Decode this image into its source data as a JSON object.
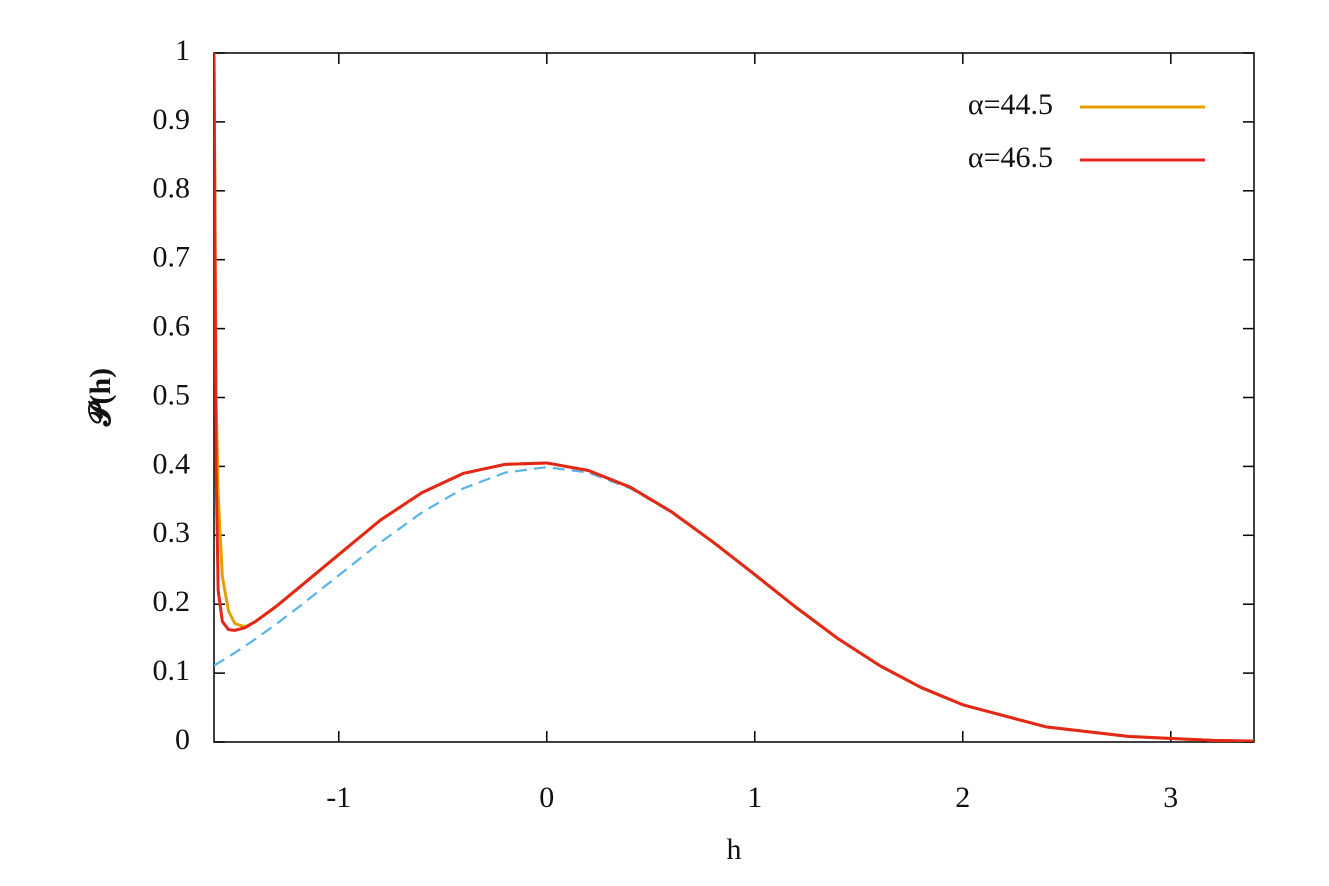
{
  "chart_data": {
    "type": "line",
    "x_label": "h",
    "y_label": "𝓟(h)",
    "x": [
      -1.6,
      -1.59,
      -1.58,
      -1.56,
      -1.53,
      -1.5,
      -1.45,
      -1.4,
      -1.3,
      -1.2,
      -1.0,
      -0.8,
      -0.6,
      -0.4,
      -0.2,
      0,
      0.2,
      0.4,
      0.6,
      0.8,
      1.0,
      1.2,
      1.4,
      1.6,
      1.8,
      2.0,
      2.4,
      2.8,
      3.2,
      3.4
    ],
    "series": [
      {
        "color": "#56b4e9",
        "dashed": true,
        "values": [
          0.1109,
          0.1127,
          0.1145,
          0.1182,
          0.1238,
          0.1295,
          0.1394,
          0.1497,
          0.1714,
          0.1942,
          0.242,
          0.2897,
          0.3332,
          0.3683,
          0.391,
          0.3989,
          0.391,
          0.3683,
          0.3332,
          0.2897,
          0.242,
          0.1942,
          0.1497,
          0.1109,
          0.079,
          0.054,
          0.0224,
          0.0079,
          0.0024,
          0.0012
        ]
      },
      {
        "name": "α=44.5",
        "color": "#e69f00",
        "values": [
          1.0,
          0.5,
          0.36,
          0.24,
          0.19,
          0.172,
          0.167,
          0.175,
          0.197,
          0.222,
          0.272,
          0.322,
          0.362,
          0.39,
          0.403,
          0.405,
          0.394,
          0.37,
          0.334,
          0.29,
          0.243,
          0.195,
          0.15,
          0.111,
          0.079,
          0.054,
          0.022,
          0.008,
          0.0024,
          0.0012
        ]
      },
      {
        "name": "α=46.5",
        "color": "#e3281a",
        "values": [
          1.0,
          0.4,
          0.22,
          0.175,
          0.163,
          0.162,
          0.166,
          0.175,
          0.197,
          0.222,
          0.272,
          0.322,
          0.362,
          0.39,
          0.403,
          0.405,
          0.394,
          0.37,
          0.334,
          0.29,
          0.243,
          0.195,
          0.15,
          0.111,
          0.079,
          0.054,
          0.022,
          0.008,
          0.0024,
          0.0012
        ]
      }
    ],
    "xlim": [
      -1.6,
      3.4
    ],
    "ylim": [
      0,
      1
    ],
    "xticks": [
      -1,
      0,
      1,
      2,
      3
    ],
    "yticks": [
      0,
      0.1,
      0.2,
      0.3,
      0.4,
      0.5,
      0.6,
      0.7,
      0.8,
      0.9,
      1
    ],
    "legend": "top-right"
  }
}
